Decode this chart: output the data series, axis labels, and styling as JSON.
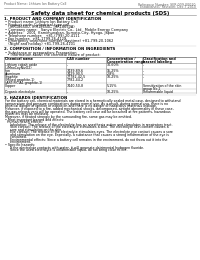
{
  "title": "Safety data sheet for chemical products (SDS)",
  "header_left": "Product Name: Lithium Ion Battery Cell",
  "header_right_line1": "Reference Number: SER-009-00010",
  "header_right_line2": "Established / Revision: Dec.7.2010",
  "section1_title": "1. PRODUCT AND COMPANY IDENTIFICATION",
  "section1_lines": [
    "• Product name: Lithium Ion Battery Cell",
    "• Product code: Cylindrical-type cell",
    "   (IHR18650U, IHR18650L, IHR18650A)",
    "• Company name:   Sanyo Electric Co., Ltd.  Mobile Energy Company",
    "• Address:   2001  Kamimunakan, Sumoto-City, Hyogo, Japan",
    "• Telephone number:   +81-(799)-20-4111",
    "• Fax number:  +81-1799-26-4129",
    "• Emergency telephone number (daytime) +81-799-20-1062",
    "   (Night and holiday) +81-799-26-4101"
  ],
  "section2_title": "2. COMPOSITION / INFORMATION ON INGREDIENTS",
  "section2_intro": "• Substance or preparation: Preparation",
  "section2_sub": "  • Information about the chemical nature of product:",
  "section3_title": "3. HAZARDS IDENTIFICATION",
  "section3_text1": "For the battery cell, chemical materials are stored in a hermetically sealed metal case, designed to withstand",
  "section3_text1b": "temperature and pressure combinations during normal use. As a result, during normal use, there is no",
  "section3_text1c": "physical danger of ignition or explosion and there is no danger of hazardous materials leakage.",
  "section3_text2a": "However, if exposed to a fire, added mechanical shocks, decomposed, airtight abnormality in these case,",
  "section3_text2b": "the gas release vent will be operated. The battery cell case will be breached at fire patterns, hazardous",
  "section3_text2c": "materials may be released.",
  "section3_text3": "Moreover, if heated strongly by the surrounding fire, some gas may be emitted.",
  "section3_bullet1": "• Most important hazard and effects:",
  "section3_human": "Human health effects:",
  "section3_inhalation": "   Inhalation: The release of the electrolyte has an anesthesia action and stimulates in respiratory tract.",
  "section3_skin1": "   Skin contact: The release of the electrolyte stimulates a skin. The electrolyte skin contact causes a",
  "section3_skin2": "   sore and stimulation on the skin.",
  "section3_eye1": "   Eye contact: The release of the electrolyte stimulates eyes. The electrolyte eye contact causes a sore",
  "section3_eye2": "   and stimulation on the eye. Especially, a substance that causes a strong inflammation of the eye is",
  "section3_eye3": "   contained.",
  "section3_env1": "   Environmental effects: Since a battery cell remains in the environment, do not throw out it into the",
  "section3_env2": "   environment.",
  "section3_specific": "• Specific hazards:",
  "section3_specific1": "   If the electrolyte contacts with water, it will generate detrimental hydrogen fluoride.",
  "section3_specific2": "   Since the used electrolyte is inflammable liquid, do not bring close to fire.",
  "bg_color": "#ffffff"
}
